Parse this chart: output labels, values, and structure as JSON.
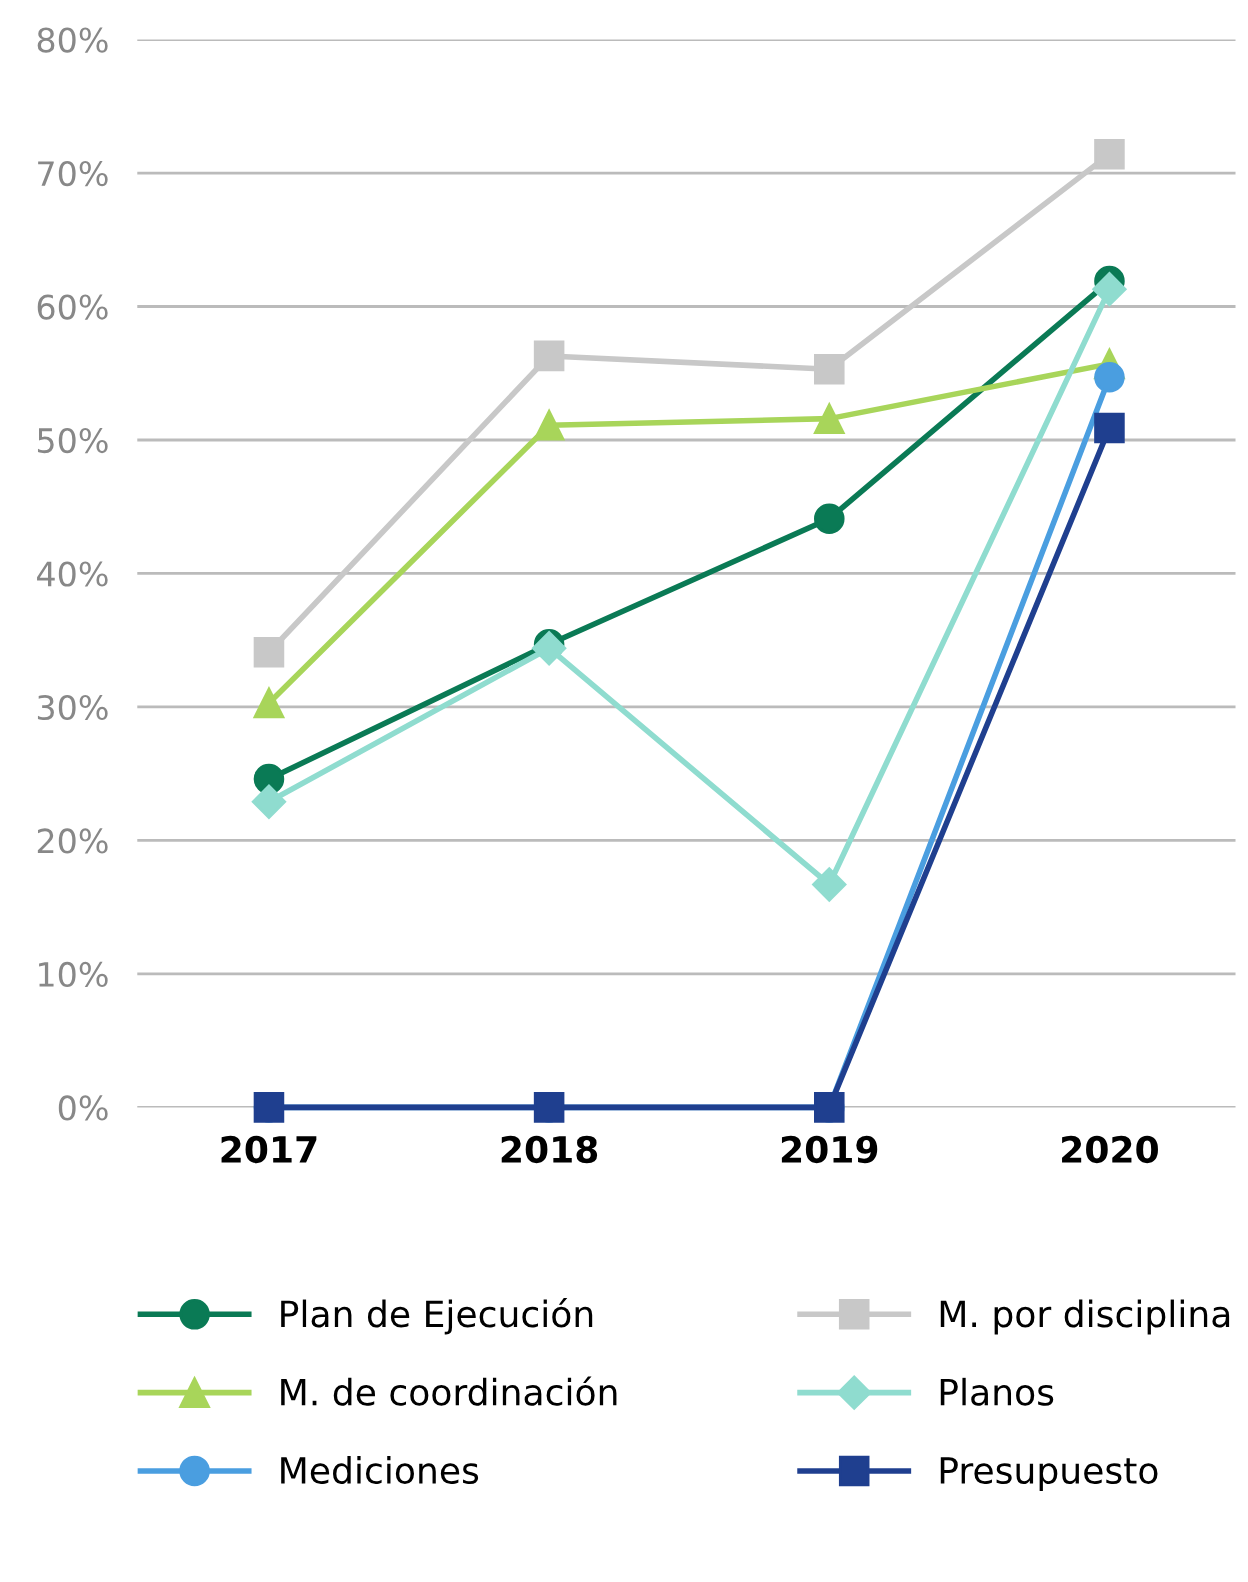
{
  "chart_data": {
    "type": "line",
    "categories": [
      "2017",
      "2018",
      "2019",
      "2020"
    ],
    "series": [
      {
        "name": "Plan de Ejecución",
        "color": "#0a7a55",
        "marker": "circle",
        "values": [
          24.6,
          34.7,
          44.1,
          61.9
        ]
      },
      {
        "name": "M. por disciplina",
        "color": "#c8c8c8",
        "marker": "square",
        "values": [
          34.1,
          56.3,
          55.3,
          71.4
        ]
      },
      {
        "name": "M. de coordinación",
        "color": "#a8d55a",
        "marker": "triangle",
        "values": [
          30.3,
          51.1,
          51.6,
          55.7
        ]
      },
      {
        "name": "Planos",
        "color": "#8fdccf",
        "marker": "diamond",
        "values": [
          22.9,
          34.4,
          16.7,
          61.3
        ]
      },
      {
        "name": "Mediciones",
        "color": "#4a9ee0",
        "marker": "circle",
        "values": [
          0,
          0,
          0,
          54.7
        ]
      },
      {
        "name": "Presupuesto",
        "color": "#1f3f8f",
        "marker": "square",
        "values": [
          0,
          0,
          0,
          50.9
        ]
      }
    ],
    "ylim": [
      0,
      80
    ],
    "yticks": [
      {
        "value": 0,
        "label": "0%"
      },
      {
        "value": 10,
        "label": "10%"
      },
      {
        "value": 20,
        "label": "20%"
      },
      {
        "value": 30,
        "label": "30%"
      },
      {
        "value": 40,
        "label": "40%"
      },
      {
        "value": 50,
        "label": "50%"
      },
      {
        "value": 60,
        "label": "60%"
      },
      {
        "value": 70,
        "label": "70%"
      },
      {
        "value": 80,
        "label": "80%"
      }
    ],
    "grid": "y",
    "legend": "bottom",
    "line_style": "solid"
  }
}
